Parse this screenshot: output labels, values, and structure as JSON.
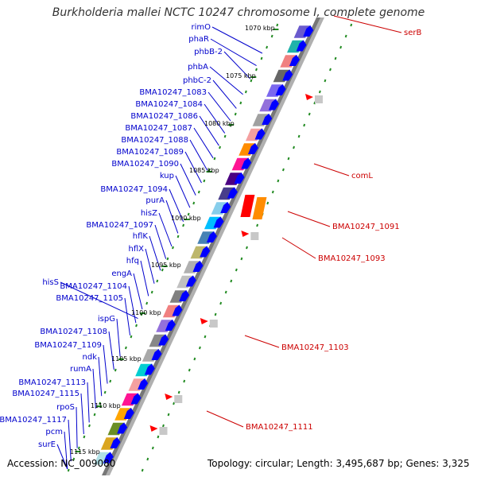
{
  "title": "Burkholderia mallei NCTC 10247 chromosome I, complete genome",
  "footer": {
    "accession": "Accession: NC_009080",
    "topology": "Topology: circular; Length: 3,495,687 bp; Genes: 3,325"
  },
  "colors": {
    "gene_label": "#0000cc",
    "rna_label": "#cc0000",
    "gene_arrow": "#0000ff",
    "rna_arrow": "#ff0000",
    "backbone": "#888888",
    "tick": "#228b22"
  },
  "scale_labels": [
    "1070 kbp",
    "1075 kbp",
    "1080 kbp",
    "1085 kbp",
    "1090 kbp",
    "1095 kbp",
    "1100 kbp",
    "1105 kbp",
    "1110 kbp",
    "1115 kbp"
  ],
  "left_genes": [
    "rimO",
    "phaR",
    "phbB-2",
    "phbA",
    "phbC-2",
    "BMA10247_1083",
    "BMA10247_1084",
    "BMA10247_1086",
    "BMA10247_1087",
    "BMA10247_1088",
    "BMA10247_1089",
    "BMA10247_1090",
    "kup",
    "BMA10247_1094",
    "purA",
    "hisZ",
    "BMA10247_1097",
    "hflK",
    "hflX",
    "hfq",
    "engA",
    "hisS",
    "BMA10247_1104",
    "BMA10247_1105",
    "ispG",
    "BMA10247_1108",
    "BMA10247_1109",
    "ndk",
    "rumA",
    "BMA10247_1113",
    "BMA10247_1115",
    "rpoS",
    "BMA10247_1117",
    "pcm",
    "surE"
  ],
  "right_genes": [
    "serB",
    "comL",
    "BMA10247_1091",
    "BMA10247_1093",
    "BMA10247_1103",
    "BMA10247_1111"
  ]
}
